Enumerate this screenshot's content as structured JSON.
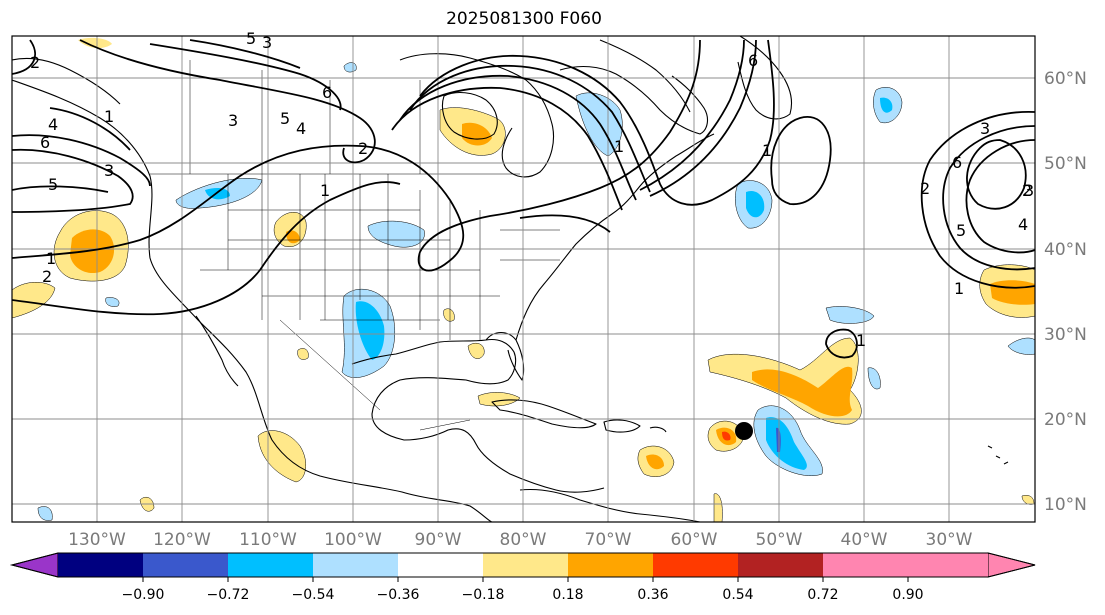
{
  "title": "2025081300 F060",
  "lat_labels": [
    "60°N",
    "50°N",
    "40°N",
    "30°N",
    "20°N",
    "10°N"
  ],
  "lon_labels": [
    "130°W",
    "120°W",
    "110°W",
    "100°W",
    "90°W",
    "80°W",
    "70°W",
    "60°W",
    "50°W",
    "40°W",
    "30°W"
  ],
  "colorbar": {
    "ticks": [
      "−0.90",
      "−0.72",
      "−0.54",
      "−0.36",
      "−0.18",
      "0.18",
      "0.36",
      "0.54",
      "0.72",
      "0.90"
    ],
    "colors": [
      "#9a35c9",
      "#000080",
      "#3a58cc",
      "#00bfff",
      "#aee0ff",
      "#ffffff",
      "#ffe88a",
      "#ffa500",
      "#ff3a00",
      "#b22222",
      "#ff85b0"
    ]
  },
  "contour_labels": [
    "1",
    "2",
    "3",
    "4",
    "5",
    "6",
    "1",
    "2",
    "3",
    "4",
    "5",
    "6",
    "1",
    "2",
    "3",
    "5",
    "6",
    "1",
    "2",
    "3",
    "4",
    "5",
    "6",
    "1",
    "2",
    "3",
    "1",
    "1"
  ],
  "storm_marker": {
    "lon": -54.5,
    "lat": 18.5
  },
  "palette": {
    "land_lines": "#000000",
    "grid": "#8c8c8c",
    "contour": "#000000"
  }
}
